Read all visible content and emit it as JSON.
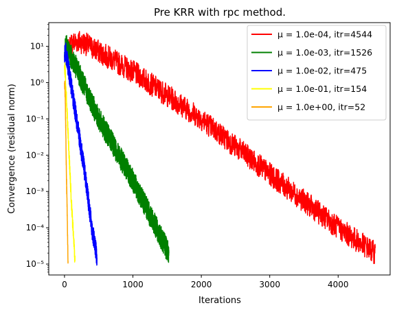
{
  "chart_data": {
    "type": "line",
    "title": "Pre KRR with rpc method.",
    "xlabel": "Iterations",
    "ylabel": "Convergence (residual norm)",
    "xlim": [
      -230,
      4760
    ],
    "ylim": [
      5e-06,
      45
    ],
    "yscale": "log",
    "grid": false,
    "legend_position": "top-right",
    "x_ticks": [
      0,
      1000,
      2000,
      3000,
      4000
    ],
    "x_tick_labels": [
      "0",
      "1000",
      "2000",
      "3000",
      "4000"
    ],
    "y_ticks": [
      1e-05,
      0.0001,
      0.001,
      0.01,
      0.1,
      1,
      10
    ],
    "y_tick_labels": [
      "10⁻⁵",
      "10⁻⁴",
      "10⁻³",
      "10⁻²",
      "10⁻¹",
      "10⁰",
      "10¹"
    ],
    "series": [
      {
        "name": "μ = 1.0e-04, itr=4544",
        "color": "#ff0000",
        "iterations": 4544,
        "x": [
          0,
          100,
          200,
          300,
          1000,
          2000,
          3000,
          4000,
          4544
        ],
        "y": [
          5,
          12,
          14,
          12,
          2,
          0.1,
          0.003,
          0.0001,
          2e-05
        ]
      },
      {
        "name": "μ = 1.0e-03, itr=1526",
        "color": "#008000",
        "iterations": 1526,
        "x": [
          0,
          30,
          100,
          200,
          500,
          1000,
          1526
        ],
        "y": [
          7,
          10,
          5,
          2,
          0.1,
          0.002,
          2e-05
        ]
      },
      {
        "name": "μ = 1.0e-02, itr=475",
        "color": "#0000ff",
        "iterations": 475,
        "x": [
          0,
          10,
          100,
          200,
          300,
          400,
          475
        ],
        "y": [
          6,
          8,
          0.8,
          0.05,
          0.003,
          0.0001,
          1.5e-05
        ]
      },
      {
        "name": "μ = 1.0e-01, itr=154",
        "color": "#ffff00",
        "iterations": 154,
        "x": [
          0,
          10,
          50,
          100,
          154
        ],
        "y": [
          3,
          2,
          0.05,
          0.0005,
          1.2e-05
        ]
      },
      {
        "name": "μ = 1.0e+00, itr=52",
        "color": "#ffa500",
        "iterations": 52,
        "x": [
          0,
          10,
          30,
          52
        ],
        "y": [
          1,
          0.5,
          0.002,
          1.2e-05
        ]
      }
    ]
  }
}
